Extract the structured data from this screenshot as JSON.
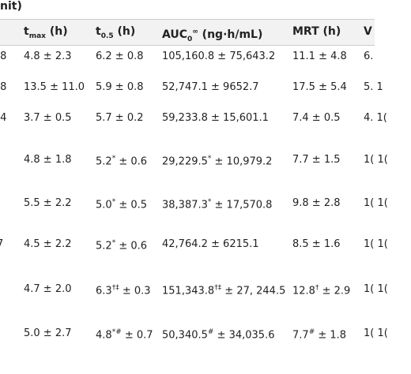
{
  "caption": "nit)",
  "table": {
    "header": [
      [
        {
          "text": ""
        }
      ],
      [
        {
          "text": "t"
        },
        {
          "sub": "max"
        },
        {
          "text": " (h)"
        }
      ],
      [
        {
          "text": "t"
        },
        {
          "sub": "0.5"
        },
        {
          "text": " (h)"
        }
      ],
      [
        {
          "text": "AUC"
        },
        {
          "sub": "0"
        },
        {
          "sup": "∞"
        },
        {
          "text": " (ng·h/mL)"
        }
      ],
      [
        {
          "text": "MRT (h)"
        }
      ],
      [
        {
          "text": "V"
        }
      ]
    ],
    "rows": [
      [
        [
          {
            "text": ".8"
          }
        ],
        [
          {
            "text": "4.8 ± 2.3"
          }
        ],
        [
          {
            "text": "6.2 ± 0.8"
          }
        ],
        [
          {
            "text": "105,160.8 ± 75,643.2"
          }
        ],
        [
          {
            "text": "11.1 ± 4.8"
          }
        ],
        [
          {
            "text": "6."
          }
        ]
      ],
      [
        [
          {
            "text": ".8"
          }
        ],
        [
          {
            "text": "13.5 ± 11.0"
          }
        ],
        [
          {
            "text": "5.9 ± 0.8"
          }
        ],
        [
          {
            "text": "52,747.1 ± 9652.7"
          }
        ],
        [
          {
            "text": "17.5 ± 5.4"
          }
        ],
        [
          {
            "text": "5. 1"
          }
        ]
      ],
      [
        [
          {
            "text": ".4"
          }
        ],
        [
          {
            "text": "3.7 ± 0.5"
          }
        ],
        [
          {
            "text": "5.7 ± 0.2"
          }
        ],
        [
          {
            "text": "59,233.8 ± 15,601.1"
          }
        ],
        [
          {
            "text": "7.4 ± 0.5"
          }
        ],
        [
          {
            "text": "4. 1("
          }
        ]
      ],
      [
        [
          {
            "text": ""
          }
        ],
        [
          {
            "text": "4.8 ± 1.8"
          }
        ],
        [
          {
            "text": "5.2"
          },
          {
            "sup": "*"
          },
          {
            "text": " ± 0.6"
          }
        ],
        [
          {
            "text": "29,229.5"
          },
          {
            "sup": "*"
          },
          {
            "text": " ± 10,979.2"
          }
        ],
        [
          {
            "text": "7.7 ± 1.5"
          }
        ],
        [
          {
            "text": "1( 1("
          }
        ]
      ],
      [
        [
          {
            "text": ""
          }
        ],
        [
          {
            "text": "5.5 ± 2.2"
          }
        ],
        [
          {
            "text": "5.0"
          },
          {
            "sup": "*"
          },
          {
            "text": " ± 0.5"
          }
        ],
        [
          {
            "text": "38,387.3"
          },
          {
            "sup": "*"
          },
          {
            "text": " ± 17,570.8"
          }
        ],
        [
          {
            "text": "9.8 ± 2.8"
          }
        ],
        [
          {
            "text": "1( 1("
          }
        ]
      ],
      [
        [
          {
            "text": "7"
          }
        ],
        [
          {
            "text": "4.5 ± 2.2"
          }
        ],
        [
          {
            "text": "5.2"
          },
          {
            "sup": "*"
          },
          {
            "text": " ± 0.6"
          }
        ],
        [
          {
            "text": "42,764.2 ± 6215.1"
          }
        ],
        [
          {
            "text": "8.5 ± 1.6"
          }
        ],
        [
          {
            "text": "1( 1("
          }
        ]
      ],
      [
        [
          {
            "text": ""
          }
        ],
        [
          {
            "text": "4.7 ± 2.0"
          }
        ],
        [
          {
            "text": "6.3"
          },
          {
            "sup": "†‡"
          },
          {
            "text": " ± 0.3"
          }
        ],
        [
          {
            "text": "151,343.8"
          },
          {
            "sup": "†‡"
          },
          {
            "text": " ± 27, 244.5"
          }
        ],
        [
          {
            "text": "12.8"
          },
          {
            "sup": "†"
          },
          {
            "text": " ± 2.9"
          }
        ],
        [
          {
            "text": "1( 1("
          }
        ]
      ],
      [
        [
          {
            "text": ""
          }
        ],
        [
          {
            "text": "5.0 ± 2.7"
          }
        ],
        [
          {
            "text": "4.8"
          },
          {
            "sup": "*#"
          },
          {
            "text": " ± 0.7"
          }
        ],
        [
          {
            "text": "50,340.5"
          },
          {
            "sup": "#"
          },
          {
            "text": " ± 34,035.6"
          }
        ],
        [
          {
            "text": "7.7"
          },
          {
            "sup": "#"
          },
          {
            "text": " ± 1.8"
          }
        ],
        [
          {
            "text": "1( 1("
          }
        ]
      ]
    ]
  }
}
